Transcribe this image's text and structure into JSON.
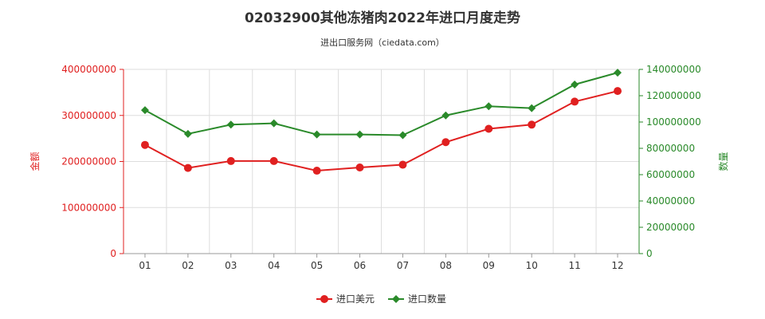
{
  "chart_data": {
    "type": "line",
    "title": "02032900其他冻猪肉2022年进口月度走势",
    "subtitle": "进出口服务网（ciedata.com）",
    "categories": [
      "01",
      "02",
      "03",
      "04",
      "05",
      "06",
      "07",
      "08",
      "09",
      "10",
      "11",
      "12"
    ],
    "y_left": {
      "label": "金额",
      "ticks": [
        "0",
        "100000000",
        "200000000",
        "300000000",
        "400000000"
      ],
      "ylim": [
        0,
        400000000
      ],
      "color": "#e02020"
    },
    "y_right": {
      "label": "数量",
      "ticks": [
        "0",
        "20000000",
        "40000000",
        "60000000",
        "80000000",
        "100000000",
        "120000000",
        "140000000"
      ],
      "ylim": [
        0,
        140000000
      ],
      "color": "#2a8a2a"
    },
    "series": [
      {
        "name": "进口美元",
        "axis": "left",
        "color": "#e02020",
        "marker": "circle",
        "values": [
          236000000,
          186000000,
          201000000,
          201000000,
          180000000,
          187000000,
          193000000,
          242000000,
          271000000,
          280000000,
          330000000,
          353000000
        ]
      },
      {
        "name": "进口数量",
        "axis": "right",
        "color": "#2a8a2a",
        "marker": "diamond",
        "values": [
          109000000,
          91000000,
          98000000,
          99000000,
          90500000,
          90500000,
          90000000,
          105000000,
          112000000,
          110500000,
          128500000,
          137500000
        ]
      }
    ],
    "grid": true,
    "legend_position": "bottom"
  }
}
